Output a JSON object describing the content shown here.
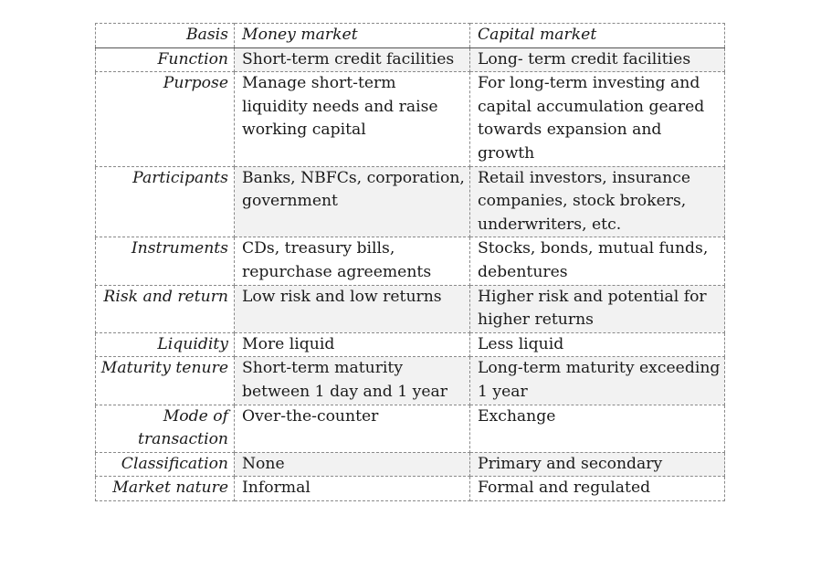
{
  "table": {
    "headers": {
      "basis": "Basis",
      "money": "Money market",
      "capital": "Capital market"
    },
    "rows": [
      {
        "basis": "Function",
        "money": "Short-term credit facilities",
        "capital": "Long- term credit facilities"
      },
      {
        "basis": "Purpose",
        "money": "Manage short-term liquidity needs and raise working capital",
        "capital": "For long-term investing and capital accumulation geared towards expansion and growth"
      },
      {
        "basis": "Participants",
        "money": "Banks, NBFCs, corporation, government",
        "capital": "Retail investors, insurance companies, stock brokers, underwriters, etc."
      },
      {
        "basis": "Instruments",
        "money": "CDs, treasury bills, repurchase agreements",
        "capital": "Stocks, bonds, mutual funds, debentures"
      },
      {
        "basis": "Risk and return",
        "money": "Low risk and low returns",
        "capital": "Higher risk and potential for higher returns"
      },
      {
        "basis": "Liquidity",
        "money": "More liquid",
        "capital": "Less liquid"
      },
      {
        "basis": "Maturity tenure",
        "money": "Short-term maturity between 1 day and 1 year",
        "capital": "Long-term maturity exceeding 1 year"
      },
      {
        "basis": "Mode of transaction",
        "money": "Over-the-counter",
        "capital": "Exchange"
      },
      {
        "basis": "Classification",
        "money": "None",
        "capital": "Primary and secondary"
      },
      {
        "basis": "Market nature",
        "money": "Informal",
        "capital": "Formal and regulated"
      }
    ]
  }
}
